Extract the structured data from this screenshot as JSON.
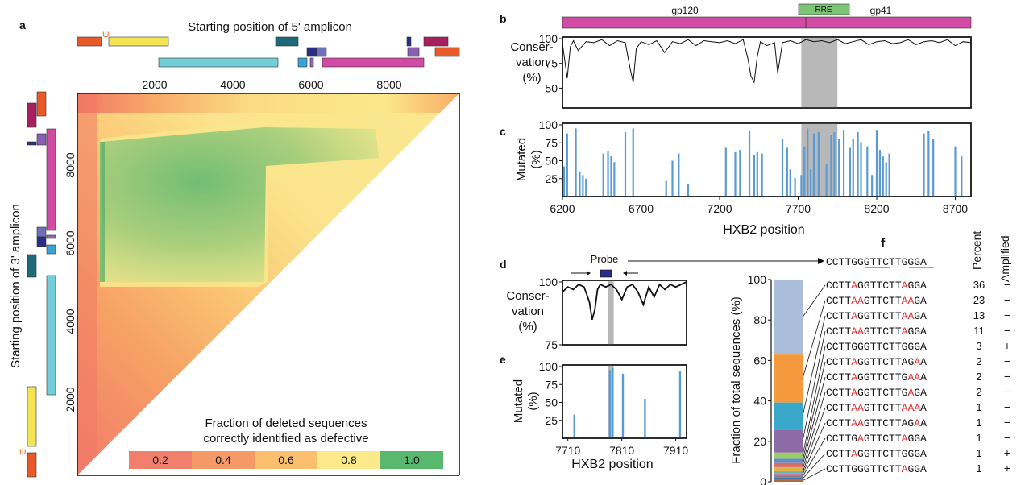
{
  "panels": {
    "a": {
      "label": "a",
      "top_title": "Starting position of 5' amplicon",
      "left_title": "Starting position of 3' amplicon",
      "top_ticks": [
        "2000",
        "4000",
        "6000",
        "8000"
      ],
      "left_ticks": [
        "2000",
        "4000",
        "6000",
        "8000"
      ],
      "psi_symbol": "ψ",
      "legend_title_1": "Fraction of deleted sequences",
      "legend_title_2": "correctly identified as defective",
      "legend": [
        {
          "label": "0.2",
          "color": "#f07f6b"
        },
        {
          "label": "0.4",
          "color": "#f59a66"
        },
        {
          "label": "0.6",
          "color": "#fbbf6e"
        },
        {
          "label": "0.8",
          "color": "#fbe98a"
        },
        {
          "label": "1.0",
          "color": "#57b86e"
        }
      ]
    },
    "b": {
      "label": "b",
      "gp120": "gp120",
      "gp41": "gp41",
      "rre": "RRE",
      "ylabel_1": "Conser-",
      "ylabel_2": "vation",
      "ylabel_3": "(%)",
      "yticks": [
        "50",
        "75",
        "100"
      ]
    },
    "c": {
      "label": "c",
      "ylabel_1": "Mutated",
      "ylabel_2": "(%)",
      "yticks": [
        "25",
        "50",
        "75",
        "100"
      ],
      "xticks": [
        "6200",
        "6700",
        "7200",
        "7700",
        "8200",
        "8700"
      ],
      "xlabel": "HXB2 position"
    },
    "d": {
      "label": "d",
      "probe": "Probe",
      "ylabel_1": "Conser-",
      "ylabel_2": "vation",
      "ylabel_3": "(%)",
      "yticks": [
        "75",
        "100"
      ]
    },
    "e": {
      "label": "e",
      "ylabel_1": "Mutated",
      "ylabel_2": "(%)",
      "yticks": [
        "25",
        "50",
        "75",
        "100"
      ],
      "xticks": [
        "7710",
        "7810",
        "7910"
      ],
      "xlabel": "HXB2 position"
    },
    "f": {
      "label": "f",
      "ylabel": "Fraction of total sequences (%)",
      "yticks": [
        "0",
        "20",
        "40",
        "60",
        "80",
        "100"
      ],
      "col_percent": "Percent",
      "col_amplified": "Amplified",
      "reference": "CCTTGGGTTCTTGGGA"
    }
  },
  "chart_data": [
    {
      "panel": "a",
      "type": "heatmap",
      "x_axis": "Starting position of 5' amplicon",
      "y_axis": "Starting position of 3' amplicon",
      "xlim": [
        0,
        9700
      ],
      "ylim": [
        0,
        9700
      ],
      "xticks": [
        2000,
        4000,
        6000,
        8000
      ],
      "yticks": [
        2000,
        4000,
        6000,
        8000
      ],
      "color_scale": [
        0.2,
        0.4,
        0.6,
        0.8,
        1.0
      ]
    },
    {
      "panel": "b",
      "type": "line",
      "ylabel": "Conservation (%)",
      "xlim": [
        6200,
        8800
      ],
      "ylim": [
        30,
        100
      ],
      "highlight": [
        7720,
        7950
      ],
      "x": [
        6200,
        6230,
        6250,
        6270,
        6300,
        6350,
        6400,
        6450,
        6500,
        6550,
        6600,
        6630,
        6650,
        6670,
        6700,
        6750,
        6800,
        6850,
        6900,
        6950,
        7000,
        7050,
        7100,
        7150,
        7200,
        7250,
        7300,
        7350,
        7380,
        7400,
        7420,
        7440,
        7460,
        7500,
        7550,
        7570,
        7600,
        7650,
        7700,
        7750,
        7800,
        7850,
        7900,
        7950,
        8000,
        8050,
        8100,
        8150,
        8200,
        8250,
        8300,
        8350,
        8400,
        8450,
        8500,
        8550,
        8600,
        8650,
        8700,
        8750,
        8800
      ],
      "y": [
        95,
        60,
        92,
        98,
        88,
        97,
        96,
        99,
        93,
        98,
        96,
        70,
        56,
        90,
        97,
        94,
        98,
        86,
        97,
        95,
        99,
        93,
        98,
        97,
        96,
        98,
        95,
        99,
        80,
        62,
        56,
        82,
        97,
        93,
        96,
        65,
        96,
        98,
        95,
        99,
        97,
        98,
        96,
        99,
        95,
        97,
        99,
        94,
        97,
        98,
        95,
        96,
        99,
        94,
        97,
        98,
        96,
        99,
        93,
        97,
        96
      ]
    },
    {
      "panel": "c",
      "type": "bar",
      "ylabel": "Mutated (%)",
      "xlabel": "HXB2 position",
      "xlim": [
        6200,
        8800
      ],
      "ylim": [
        0,
        100
      ],
      "highlight": [
        7720,
        7950
      ],
      "x": [
        6210,
        6230,
        6285,
        6310,
        6330,
        6350,
        6460,
        6490,
        6510,
        6530,
        6600,
        6650,
        6860,
        6900,
        6940,
        7000,
        7240,
        7300,
        7330,
        7390,
        7420,
        7440,
        7470,
        7600,
        7630,
        7650,
        7680,
        7720,
        7740,
        7760,
        7780,
        7800,
        7830,
        7880,
        7910,
        7930,
        7960,
        7990,
        8030,
        8050,
        8080,
        8100,
        8140,
        8170,
        8200,
        8220,
        8240,
        8260,
        8280,
        8500,
        8530,
        8560,
        8700,
        8740
      ],
      "values": [
        42,
        88,
        95,
        35,
        30,
        25,
        60,
        64,
        56,
        48,
        90,
        95,
        22,
        50,
        60,
        18,
        68,
        62,
        65,
        92,
        58,
        62,
        60,
        80,
        68,
        38,
        26,
        30,
        70,
        95,
        38,
        88,
        90,
        45,
        86,
        90,
        80,
        93,
        68,
        80,
        90,
        76,
        70,
        30,
        93,
        65,
        56,
        48,
        60,
        88,
        92,
        80,
        70,
        56
      ]
    },
    {
      "panel": "d",
      "type": "line",
      "ylabel": "Conservation (%)",
      "xlim": [
        7700,
        7930
      ],
      "ylim": [
        75,
        100
      ],
      "highlight": [
        7785,
        7795
      ],
      "x": [
        7700,
        7710,
        7720,
        7730,
        7740,
        7750,
        7755,
        7760,
        7765,
        7770,
        7780,
        7790,
        7800,
        7810,
        7820,
        7830,
        7840,
        7850,
        7860,
        7870,
        7880,
        7890,
        7900,
        7910,
        7920,
        7930
      ],
      "y": [
        96,
        98,
        97,
        99,
        98,
        92,
        85,
        89,
        97,
        99,
        98,
        99,
        97,
        93,
        98,
        99,
        96,
        91,
        98,
        94,
        99,
        97,
        99,
        98,
        99,
        100
      ]
    },
    {
      "panel": "e",
      "type": "bar",
      "ylabel": "Mutated (%)",
      "xlabel": "HXB2 position",
      "xlim": [
        7700,
        7930
      ],
      "ylim": [
        0,
        100
      ],
      "highlight": [
        7785,
        7795
      ],
      "x": [
        7722,
        7788,
        7793,
        7812,
        7853,
        7918
      ],
      "values": [
        33,
        95,
        98,
        90,
        55,
        93
      ]
    },
    {
      "panel": "f",
      "type": "bar",
      "ylabel": "Fraction of total sequences (%)",
      "ylim": [
        0,
        100
      ],
      "stacked": true,
      "rows": [
        {
          "pre": "CCTT",
          "red1": "A",
          "mid": "GGTTCTT",
          "red2": "A",
          "post": "GGA",
          "percent": "36",
          "amplified": "−",
          "color": "#a9bcd9"
        },
        {
          "pre": "CCTT",
          "red1": "AA",
          "mid": "GTTCTT",
          "red2": "AA",
          "post": "GA",
          "percent": "23",
          "amplified": "−",
          "color": "#f5993e"
        },
        {
          "pre": "CCTT",
          "red1": "A",
          "mid": "GGTTCTT",
          "red2": "AA",
          "post": "GA",
          "percent": "13",
          "amplified": "−",
          "color": "#39a7c9"
        },
        {
          "pre": "CCTT",
          "red1": "AA",
          "mid": "GTTCTT",
          "red2": "A",
          "post": "GGA",
          "percent": "11",
          "amplified": "−",
          "color": "#8e6aa6"
        },
        {
          "pre": "CCTTGGGTTCTTGGGA",
          "red1": "",
          "mid": "",
          "red2": "",
          "post": "",
          "percent": "3",
          "amplified": "+",
          "color": "#9fcc6b"
        },
        {
          "pre": "CCTT",
          "red1": "A",
          "mid": "GGTTCTTAG",
          "red2": "A",
          "post": "A",
          "percent": "2",
          "amplified": "−",
          "color": "#5b8fd0"
        },
        {
          "pre": "CCTT",
          "red1": "A",
          "mid": "GGTTCTTG",
          "red2": "AA",
          "post": "A",
          "percent": "2",
          "amplified": "−",
          "color": "#d96b6b"
        },
        {
          "pre": "CCTT",
          "red1": "A",
          "mid": "GGTTCTTG",
          "red2": "A",
          "post": "GA",
          "percent": "2",
          "amplified": "−",
          "color": "#e0b44a"
        },
        {
          "pre": "CCTT",
          "red1": "AA",
          "mid": "GTTCTT",
          "red2": "AAA",
          "post": "A",
          "percent": "1",
          "amplified": "−",
          "color": "#6fb3a2"
        },
        {
          "pre": "CCTT",
          "red1": "AA",
          "mid": "GTTCTTAG",
          "red2": "A",
          "post": "A",
          "percent": "1",
          "amplified": "−",
          "color": "#c77bb3"
        },
        {
          "pre": "CCTTG",
          "red1": "A",
          "mid": "GTTCTT",
          "red2": "A",
          "post": "GGA",
          "percent": "1",
          "amplified": "−",
          "color": "#7f7f7f"
        },
        {
          "pre": "CCTT",
          "red1": "A",
          "mid": "GGTTCTTGGGA",
          "red2": "",
          "post": "",
          "percent": "1",
          "amplified": "+",
          "color": "#4d6fa8"
        },
        {
          "pre": "CCTTGGGTTCTT",
          "red1": "A",
          "mid": "GGA",
          "red2": "",
          "post": "",
          "percent": "1",
          "amplified": "+",
          "color": "#b06a3b"
        }
      ]
    }
  ],
  "colors": {
    "env": "#d14aa4",
    "rre": "#7cc576",
    "highlight": "#b8b8b8",
    "bars": "#5b9bd5",
    "mutation": "#e8282b"
  }
}
